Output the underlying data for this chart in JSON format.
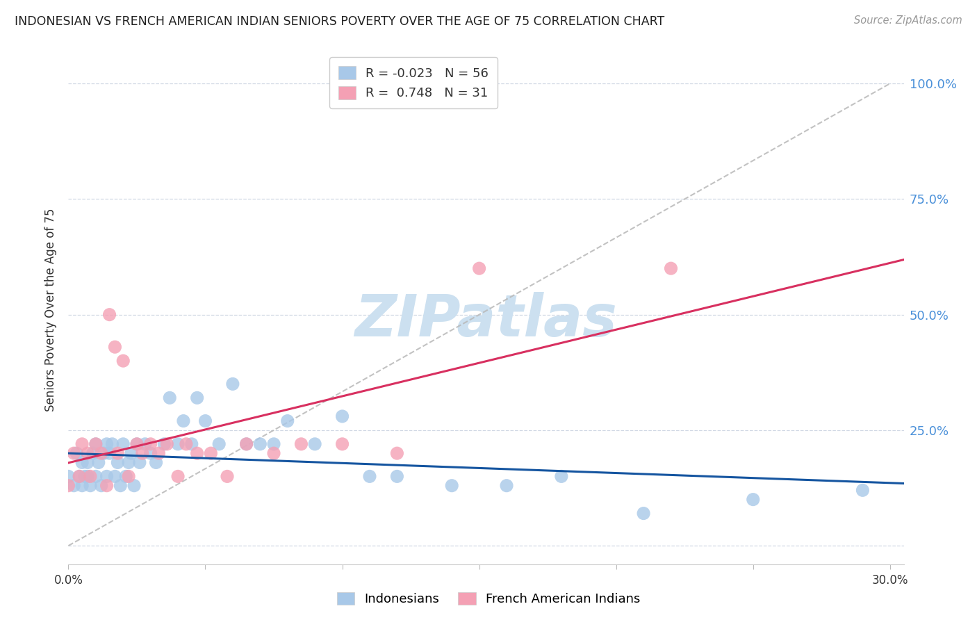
{
  "title": "INDONESIAN VS FRENCH AMERICAN INDIAN SENIORS POVERTY OVER THE AGE OF 75 CORRELATION CHART",
  "source": "Source: ZipAtlas.com",
  "ylabel": "Seniors Poverty Over the Age of 75",
  "xlim": [
    0.0,
    0.305
  ],
  "ylim": [
    -0.04,
    1.06
  ],
  "yticks": [
    0.0,
    0.25,
    0.5,
    0.75,
    1.0
  ],
  "ytick_labels_right": [
    "",
    "25.0%",
    "50.0%",
    "75.0%",
    "100.0%"
  ],
  "xticks": [
    0.0,
    0.05,
    0.1,
    0.15,
    0.2,
    0.25,
    0.3
  ],
  "xtick_labels": [
    "0.0%",
    "",
    "",
    "",
    "",
    "",
    "30.0%"
  ],
  "R_indonesian": -0.023,
  "N_indonesian": 56,
  "R_french": 0.748,
  "N_french": 31,
  "color_indonesian": "#a8c8e8",
  "color_french": "#f4a0b4",
  "line_color_indonesian": "#1555a0",
  "line_color_french": "#d83060",
  "diag_line_color": "#b8b8b8",
  "watermark": "ZIPatlas",
  "watermark_color": "#cce0f0",
  "indonesian_x": [
    0.0,
    0.002,
    0.003,
    0.004,
    0.005,
    0.005,
    0.006,
    0.007,
    0.007,
    0.008,
    0.009,
    0.01,
    0.01,
    0.011,
    0.012,
    0.013,
    0.014,
    0.014,
    0.015,
    0.016,
    0.017,
    0.018,
    0.019,
    0.02,
    0.021,
    0.022,
    0.023,
    0.024,
    0.025,
    0.026,
    0.028,
    0.03,
    0.032,
    0.035,
    0.037,
    0.04,
    0.042,
    0.045,
    0.047,
    0.05,
    0.055,
    0.06,
    0.065,
    0.07,
    0.075,
    0.08,
    0.09,
    0.1,
    0.11,
    0.12,
    0.14,
    0.16,
    0.18,
    0.21,
    0.25,
    0.29
  ],
  "indonesian_y": [
    0.15,
    0.13,
    0.2,
    0.15,
    0.18,
    0.13,
    0.15,
    0.18,
    0.15,
    0.13,
    0.2,
    0.22,
    0.15,
    0.18,
    0.13,
    0.2,
    0.15,
    0.22,
    0.2,
    0.22,
    0.15,
    0.18,
    0.13,
    0.22,
    0.15,
    0.18,
    0.2,
    0.13,
    0.22,
    0.18,
    0.22,
    0.2,
    0.18,
    0.22,
    0.32,
    0.22,
    0.27,
    0.22,
    0.32,
    0.27,
    0.22,
    0.35,
    0.22,
    0.22,
    0.22,
    0.27,
    0.22,
    0.28,
    0.15,
    0.15,
    0.13,
    0.13,
    0.15,
    0.07,
    0.1,
    0.12
  ],
  "french_x": [
    0.0,
    0.002,
    0.004,
    0.005,
    0.007,
    0.008,
    0.01,
    0.012,
    0.014,
    0.015,
    0.017,
    0.018,
    0.02,
    0.022,
    0.025,
    0.027,
    0.03,
    0.033,
    0.036,
    0.04,
    0.043,
    0.047,
    0.052,
    0.058,
    0.065,
    0.075,
    0.085,
    0.1,
    0.12,
    0.15,
    0.22
  ],
  "french_y": [
    0.13,
    0.2,
    0.15,
    0.22,
    0.2,
    0.15,
    0.22,
    0.2,
    0.13,
    0.5,
    0.43,
    0.2,
    0.4,
    0.15,
    0.22,
    0.2,
    0.22,
    0.2,
    0.22,
    0.15,
    0.22,
    0.2,
    0.2,
    0.15,
    0.22,
    0.2,
    0.22,
    0.22,
    0.2,
    0.6,
    0.6
  ]
}
